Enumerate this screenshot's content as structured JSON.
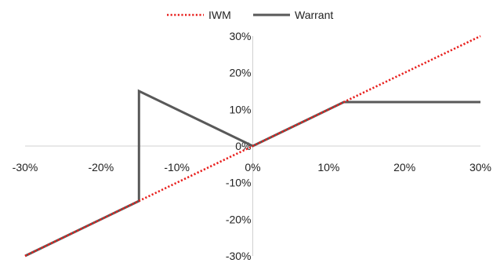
{
  "chart_data": {
    "type": "line",
    "title": "",
    "xlabel": "",
    "ylabel": "",
    "xlim": [
      -0.3,
      0.3
    ],
    "ylim": [
      -0.3,
      0.3
    ],
    "x_ticks": [
      -0.3,
      -0.2,
      -0.1,
      0.0,
      0.1,
      0.2,
      0.3
    ],
    "y_ticks": [
      -0.3,
      -0.2,
      -0.1,
      0.0,
      0.1,
      0.2,
      0.3
    ],
    "x_tick_labels": [
      "-30%",
      "-20%",
      "-10%",
      "0%",
      "10%",
      "20%",
      "30%"
    ],
    "y_tick_labels": [
      "-30%",
      "-20%",
      "-10%",
      "0%",
      "10%",
      "20%",
      "30%"
    ],
    "grid": false,
    "legend_position": "top-center",
    "series": [
      {
        "name": "IWM",
        "style": "dotted",
        "color": "#e8201e",
        "points": [
          [
            -0.3,
            -0.3
          ],
          [
            0.3,
            0.3
          ]
        ]
      },
      {
        "name": "Warrant",
        "style": "solid",
        "color": "#595959",
        "points": [
          [
            -0.3,
            -0.3
          ],
          [
            -0.15,
            -0.15
          ],
          [
            -0.15,
            0.15
          ],
          [
            0.0,
            0.0
          ],
          [
            0.12,
            0.12
          ],
          [
            0.3,
            0.12
          ]
        ]
      }
    ]
  }
}
